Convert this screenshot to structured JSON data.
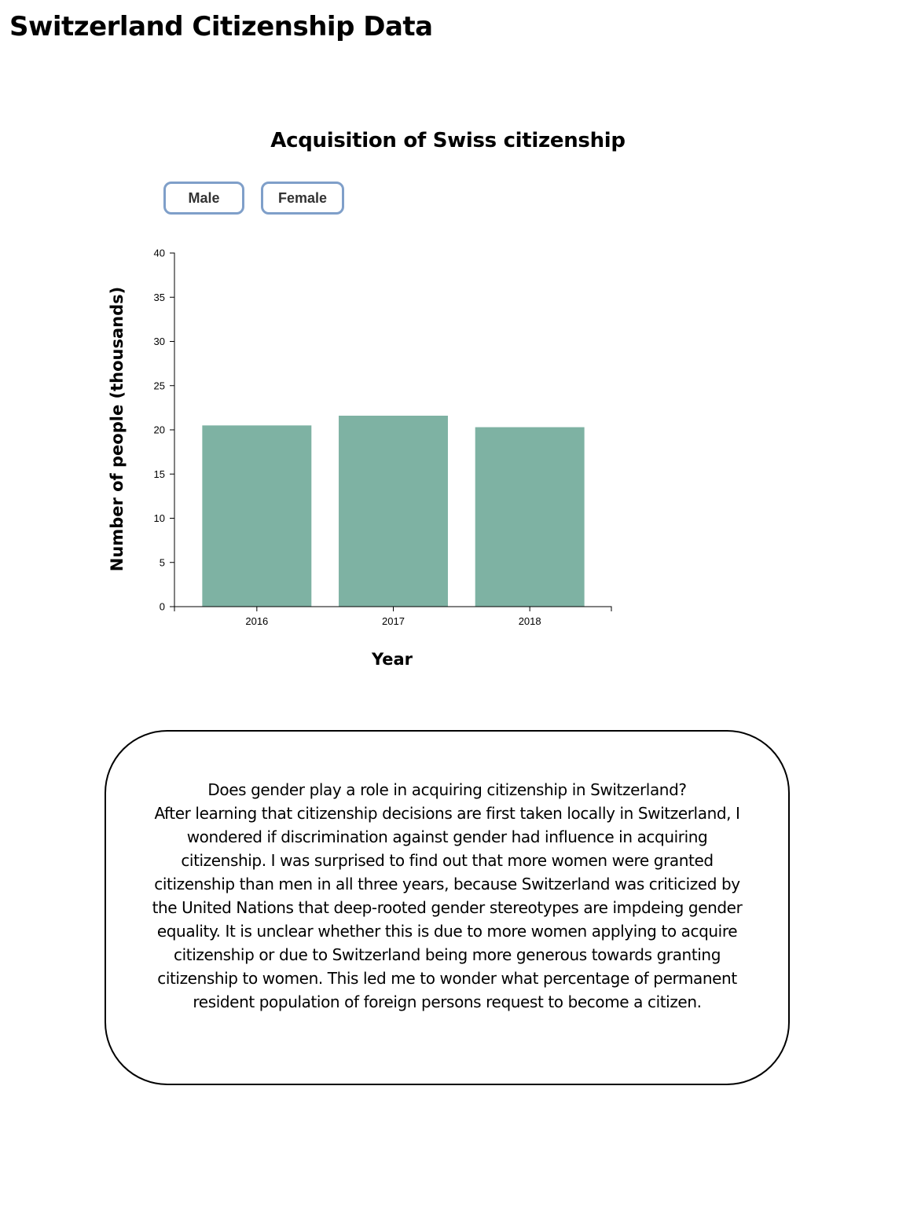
{
  "page": {
    "title": "Switzerland Citizenship Data"
  },
  "buttons": {
    "male": "Male",
    "female": "Female"
  },
  "colors": {
    "bar": "#7eb2a3",
    "button_border": "#7f9fc9"
  },
  "chart_data": {
    "type": "bar",
    "title": "Acquisition of Swiss citizenship",
    "xlabel": "Year",
    "ylabel": "Number of people (thousands)",
    "categories": [
      "2016",
      "2017",
      "2018"
    ],
    "values": [
      20.5,
      21.6,
      20.3
    ],
    "ylim": [
      0,
      40
    ],
    "yticks": [
      0,
      5,
      10,
      15,
      20,
      25,
      30,
      35,
      40
    ],
    "grid": false,
    "legend": "none"
  },
  "note": {
    "question": "Does gender play a role in acquiring citizenship in Switzerland?",
    "body": "After learning that citizenship decisions are first taken locally in Switzerland, I wondered if discrimination against gender had influence in acquiring citizenship. I was surprised to find out that more women were granted citizenship than men in all three years, because Switzerland was criticized by the United Nations that deep-rooted gender stereotypes are impdeing gender equality. It is unclear whether this is due to more women applying to acquire citizenship or due to Switzerland being more generous towards granting citizenship to women. This led me to wonder what percentage of permanent resident population of foreign persons request to become a citizen."
  }
}
